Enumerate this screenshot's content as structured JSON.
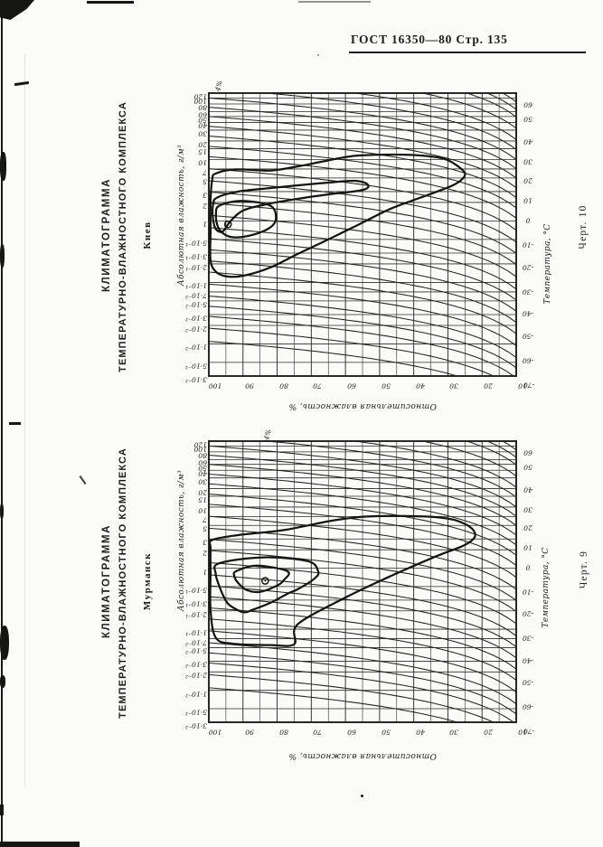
{
  "page": {
    "header": "ГОСТ 16350—80 Стр. 135",
    "ink_color": "#1d1d1b",
    "paper_color": "#fbfbf8"
  },
  "charts": [
    {
      "name": "kiev",
      "title_line1": "КЛИМАТОГРАММА",
      "title_line2": "ТЕМПЕРАТУРНО-ВЛАЖНОСТНОГО КОМПЛЕКСА",
      "city": "Киев",
      "caption": "Черт. 10",
      "corner_label": "4%",
      "abs_axis_label": "Абсолютная влажность, г/м³",
      "rh_axis_label": "Относительная влажность, %",
      "temp_axis_label": "Температура, °С",
      "chart_data": {
        "type": "line",
        "subtype": "climatogram of temperature-humidity complex",
        "abs_humidity_axis": {
          "unit": "г/м³",
          "scale": "log",
          "range": [
            0.003,
            120
          ],
          "tick_values": [
            120,
            100,
            80,
            60,
            50,
            40,
            30,
            20,
            15,
            10,
            7,
            5,
            3,
            2,
            1,
            0.5,
            0.3,
            0.2,
            0.1,
            0.07,
            0.05,
            0.03,
            0.02,
            0.01,
            0.005,
            0.003
          ],
          "tick_labels": [
            "120",
            "100",
            "80",
            "60",
            "50",
            "40",
            "30",
            "20",
            "15",
            "10",
            "7",
            "5",
            "3",
            "2",
            "1",
            "5·10⁻¹",
            "3·10⁻¹",
            "2·10⁻¹",
            "1·10⁻¹",
            "7·10⁻²",
            "5·10⁻²",
            "3·10⁻²",
            "2·10⁻²",
            "1·10⁻²",
            "5·10⁻³",
            "3·10⁻³"
          ]
        },
        "rel_humidity_axis": {
          "unit": "%",
          "scale": "linear",
          "range": [
            100,
            10
          ],
          "tick_values": [
            100,
            90,
            80,
            70,
            60,
            50,
            40,
            30,
            20,
            10
          ],
          "minor_step": 5
        },
        "temperature_isolines": {
          "unit": "°С",
          "labels": [
            60,
            50,
            40,
            30,
            20,
            10,
            0,
            -10,
            -20,
            -30,
            -40,
            -50,
            -60,
            -70
          ],
          "abs_at_rh10_exit": [
            86,
            49,
            21,
            10,
            5.0,
            2.4,
            1.11,
            0.45,
            0.195,
            0.078,
            0.034,
            0.0147,
            0.006,
            0.0028
          ],
          "extra_unlabeled_exits": [
            115,
            0.0018,
            0.0011
          ]
        },
        "contours": [
          [
            [
              98,
              5.9
            ],
            [
              92,
              6.9
            ],
            [
              82,
              6.6
            ],
            [
              74,
              7.7
            ],
            [
              67,
              9.2
            ],
            [
              60,
              10.9
            ],
            [
              56,
              11.6
            ],
            [
              47,
              12.0
            ],
            [
              38,
              11.6
            ],
            [
              31,
              10.2
            ],
            [
              27,
              7.7
            ],
            [
              25,
              5.9
            ],
            [
              26,
              4.7
            ],
            [
              29,
              3.7
            ],
            [
              38,
              2.4
            ],
            [
              47,
              1.56
            ],
            [
              56,
              0.88
            ],
            [
              65,
              0.5
            ],
            [
              74,
              0.29
            ],
            [
              82,
              0.175
            ],
            [
              90,
              0.128
            ],
            [
              95,
              0.126
            ],
            [
              98,
              0.15
            ],
            [
              99.5,
              0.23
            ],
            [
              99.5,
              0.69
            ],
            [
              99.5,
              2.1
            ],
            [
              99,
              4.7
            ]
          ],
          [
            [
              97.6,
              2.4
            ],
            [
              91.5,
              3.0
            ],
            [
              82.5,
              3.4
            ],
            [
              73.8,
              3.8
            ],
            [
              65.1,
              4.2
            ],
            [
              57.4,
              4.5
            ],
            [
              54,
              4.1
            ],
            [
              53.4,
              3.5
            ],
            [
              56.1,
              3.1
            ],
            [
              65.1,
              2.7
            ],
            [
              73.8,
              2.3
            ],
            [
              82.5,
              1.9
            ],
            [
              89.7,
              1.5
            ],
            [
              93.6,
              1.0
            ],
            [
              96,
              0.67
            ],
            [
              98.1,
              0.76
            ],
            [
              98.9,
              1.25
            ],
            [
              98.7,
              1.9
            ]
          ],
          [
            [
              97.1,
              1.75
            ],
            [
              91.8,
              2.1
            ],
            [
              85.7,
              2.0
            ],
            [
              81.8,
              1.75
            ],
            [
              80.4,
              1.3
            ],
            [
              80.9,
              0.9
            ],
            [
              83.8,
              0.69
            ],
            [
              89.2,
              0.56
            ],
            [
              93.6,
              0.55
            ],
            [
              96.3,
              0.66
            ],
            [
              97.6,
              0.88
            ],
            [
              97.9,
              1.3
            ]
          ]
        ],
        "mean_point": {
          "rh": 94.4,
          "abs": 0.88
        }
      }
    },
    {
      "name": "murmansk",
      "title_line1": "КЛИМАТОГРАММА",
      "title_line2": "ТЕМПЕРАТУРНО-ВЛАЖНОСТНОГО КОМПЛЕКСА",
      "city": "Мурманск",
      "caption": "Черт. 9",
      "corner_label": "4%",
      "abs_axis_label": "Абсолютная влажность, г/м³",
      "rh_axis_label": "Относительная влажность, %",
      "temp_axis_label": "Температура, °С",
      "chart_data": {
        "type": "line",
        "subtype": "climatogram of temperature-humidity complex",
        "abs_humidity_axis": {
          "unit": "г/м³",
          "scale": "log",
          "range": [
            0.003,
            120
          ],
          "tick_values": [
            120,
            100,
            80,
            60,
            50,
            40,
            30,
            20,
            15,
            10,
            7,
            5,
            3,
            2,
            1,
            0.5,
            0.3,
            0.2,
            0.1,
            0.07,
            0.05,
            0.03,
            0.02,
            0.01,
            0.005,
            0.003
          ],
          "tick_labels": [
            "120",
            "100",
            "80",
            "60",
            "50",
            "40",
            "30",
            "20",
            "15",
            "10",
            "7",
            "5",
            "3",
            "2",
            "1",
            "5·10⁻¹",
            "3·10⁻¹",
            "2·10⁻¹",
            "1·10⁻¹",
            "7·10⁻²",
            "5·10⁻²",
            "3·10⁻²",
            "2·10⁻²",
            "1·10⁻²",
            "5·10⁻³",
            "3·10⁻³"
          ]
        },
        "rel_humidity_axis": {
          "unit": "%",
          "scale": "linear",
          "range": [
            100,
            10
          ],
          "tick_values": [
            100,
            90,
            80,
            70,
            60,
            50,
            40,
            30,
            20,
            10
          ],
          "minor_step": 5
        },
        "temperature_isolines": {
          "unit": "°С",
          "labels": [
            60,
            50,
            40,
            30,
            20,
            10,
            0,
            -10,
            -20,
            -30,
            -40,
            -50,
            -60,
            -70
          ],
          "abs_at_rh10_exit": [
            86,
            49,
            21,
            10,
            5.0,
            2.4,
            1.11,
            0.45,
            0.195,
            0.078,
            0.034,
            0.0147,
            0.006,
            0.0028
          ],
          "extra_unlabeled_exits": [
            115,
            0.0018,
            0.0011
          ]
        },
        "contours": [
          [
            [
              99,
              2.9
            ],
            [
              91,
              3.5
            ],
            [
              78,
              4.2
            ],
            [
              63,
              6.1
            ],
            [
              51,
              7.1
            ],
            [
              33,
              6.8
            ],
            [
              25,
              5.3
            ],
            [
              22,
              3.5
            ],
            [
              25,
              2.4
            ],
            [
              33,
              1.6
            ],
            [
              47,
              0.73
            ],
            [
              60,
              0.33
            ],
            [
              74,
              0.12
            ],
            [
              75,
              0.057
            ],
            [
              82,
              0.055
            ],
            [
              93,
              0.058
            ],
            [
              98,
              0.073
            ],
            [
              99.5,
              0.21
            ],
            [
              99.5,
              0.81
            ],
            [
              99.5,
              2.1
            ]
          ],
          [
            [
              97,
              1.2
            ],
            [
              84,
              1.5
            ],
            [
              71,
              1.3
            ],
            [
              68,
              0.89
            ],
            [
              69,
              0.68
            ],
            [
              74,
              0.45
            ],
            [
              77,
              0.38
            ],
            [
              82,
              0.27
            ],
            [
              87,
              0.21
            ],
            [
              90,
              0.19
            ],
            [
              94,
              0.25
            ],
            [
              95.5,
              0.33
            ],
            [
              97,
              0.52
            ],
            [
              98,
              0.81
            ]
          ],
          [
            [
              92,
              0.89
            ],
            [
              86,
              1.1
            ],
            [
              77,
              0.89
            ],
            [
              78,
              0.64
            ],
            [
              80,
              0.52
            ],
            [
              85,
              0.41
            ],
            [
              89,
              0.44
            ],
            [
              91.5,
              0.58
            ],
            [
              92.5,
              0.73
            ]
          ]
        ],
        "mean_point": {
          "rh": 83.5,
          "abs": 0.62
        }
      }
    }
  ]
}
